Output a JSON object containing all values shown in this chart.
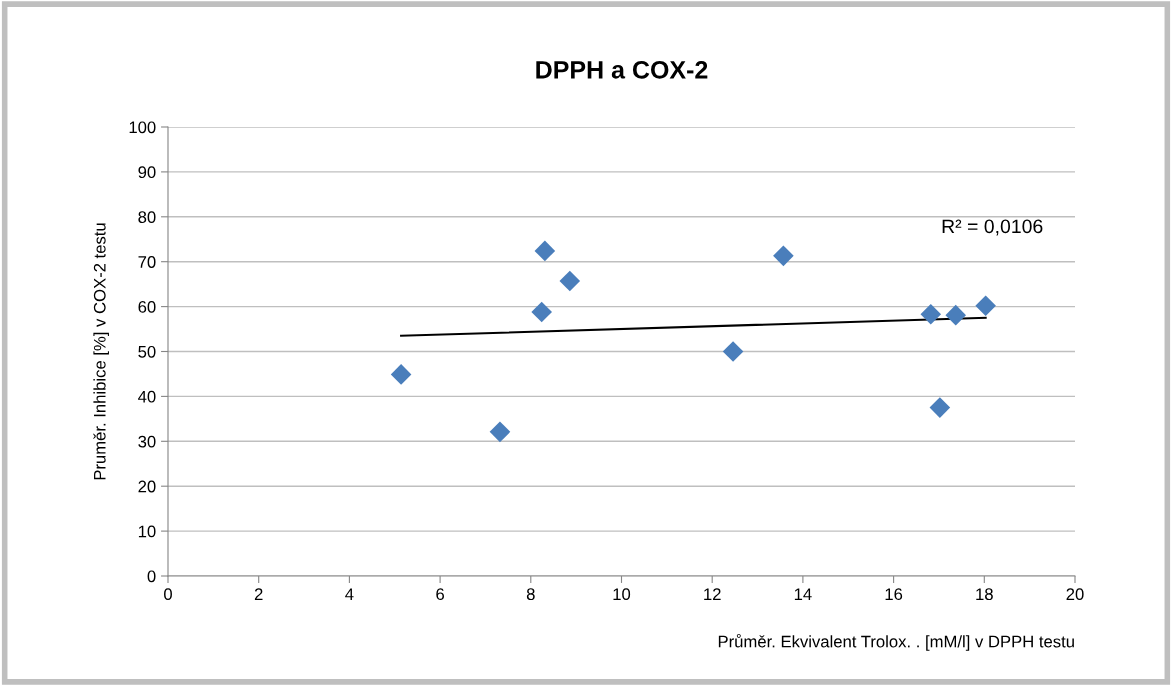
{
  "chart_data": {
    "type": "scatter",
    "title": "DPPH a COX-2",
    "xlabel": "Průměr. Ekvivalent Trolox. . [mM/l] v DPPH testu",
    "ylabel": "Pruměr. Inhibice [%] v COX-2 testu",
    "series": [
      {
        "color": "#4a7ebb",
        "marker": "diamond",
        "x": [
          5.14,
          7.32,
          8.24,
          8.31,
          8.86,
          12.46,
          13.57,
          16.82,
          17.02,
          17.37,
          18.03
        ],
        "values": [
          44.9,
          32.1,
          58.8,
          72.4,
          65.7,
          50.0,
          71.3,
          58.3,
          37.5,
          58.1,
          60.2
        ]
      },
      {
        "type": "line",
        "color": "#000000",
        "x": [
          5.14,
          18.03
        ],
        "values": [
          53.5,
          57.5
        ]
      }
    ],
    "annotations": [
      "R² = 0,0106"
    ],
    "xlim": [
      0,
      20
    ],
    "xticks": [
      0,
      2,
      4,
      6,
      8,
      10,
      12,
      14,
      16,
      18,
      20
    ],
    "ylim": [
      0,
      100
    ],
    "yticks": [
      0,
      10,
      20,
      30,
      40,
      50,
      60,
      70,
      80,
      90,
      100
    ],
    "grid": "y",
    "legend": false
  }
}
